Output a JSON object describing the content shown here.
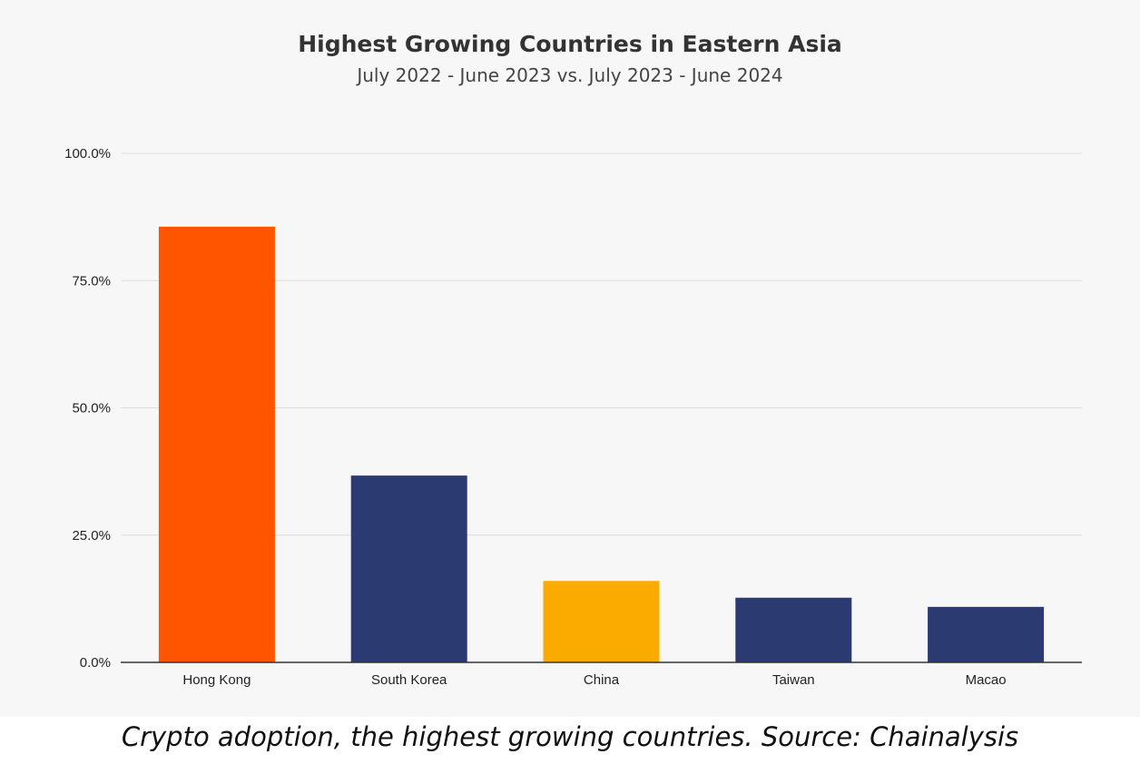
{
  "chart_data": {
    "type": "bar",
    "title": "Highest Growing Countries in Eastern Asia",
    "subtitle": "July 2022 - June 2023 vs. July 2023 - June 2024",
    "categories": [
      "Hong Kong",
      "South Korea",
      "China",
      "Taiwan",
      "Macao"
    ],
    "values": [
      85.6,
      36.7,
      16.0,
      12.7,
      10.9
    ],
    "colors": [
      "#ff5500",
      "#2b3a70",
      "#fbab00",
      "#2b3a70",
      "#2b3a70"
    ],
    "yticks": [
      "0.0%",
      "25.0%",
      "50.0%",
      "75.0%",
      "100.0%"
    ],
    "ytick_values": [
      0,
      25,
      50,
      75,
      100
    ],
    "ylim": [
      0,
      100
    ],
    "xlabel": "",
    "ylabel": "",
    "grid": true,
    "legend": "none"
  },
  "caption": "Crypto adoption, the highest growing countries. Source: Chainalysis",
  "colors": {
    "background": "#f7f7f7",
    "gridline": "#dddddd",
    "axis": "#333333",
    "title": "#333333",
    "subtitle": "#444444",
    "tick_text": "#222222"
  }
}
